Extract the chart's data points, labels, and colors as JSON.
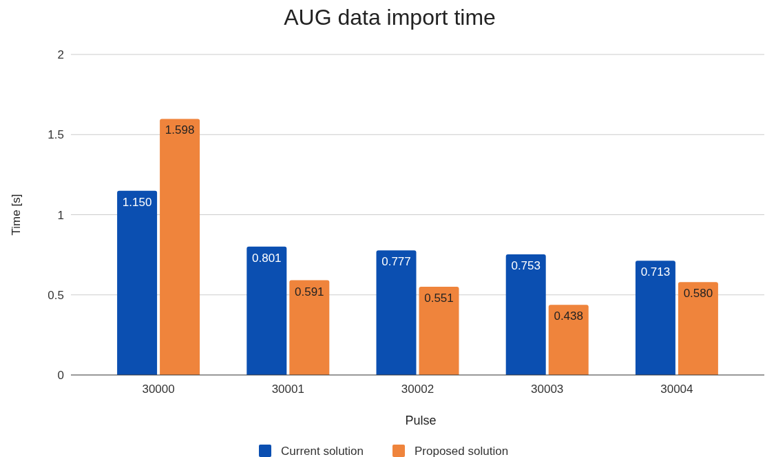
{
  "chart_data": {
    "type": "bar",
    "title": "AUG data import time",
    "xlabel": "Pulse",
    "ylabel": "Time [s]",
    "categories": [
      "30000",
      "30001",
      "30002",
      "30003",
      "30004"
    ],
    "series": [
      {
        "name": "Current solution",
        "color": "#0b4fb1",
        "values": [
          1.15,
          0.801,
          0.777,
          0.753,
          0.713
        ],
        "value_labels": [
          "1.150",
          "0.801",
          "0.777",
          "0.753",
          "0.713"
        ]
      },
      {
        "name": "Proposed solution",
        "color": "#ef843c",
        "values": [
          1.598,
          0.591,
          0.551,
          0.438,
          0.58
        ],
        "value_labels": [
          "1.598",
          "0.591",
          "0.551",
          "0.438",
          "0.580"
        ]
      }
    ],
    "ylim": [
      0,
      2
    ],
    "yticks": [
      0,
      0.5,
      1,
      1.5,
      2
    ],
    "grid": "y",
    "legend": "bottom"
  }
}
